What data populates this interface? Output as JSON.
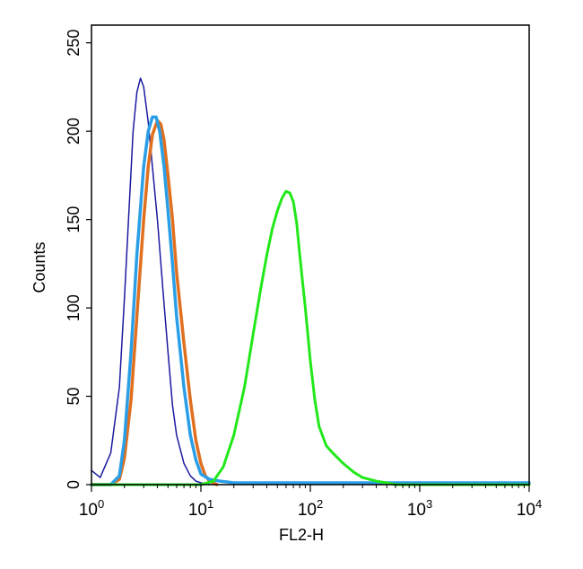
{
  "chart_data": {
    "type": "line",
    "title": "",
    "xlabel": "FL2-H",
    "ylabel": "Counts",
    "xscale": "log",
    "xlim": [
      1,
      10000
    ],
    "ylim": [
      0,
      260
    ],
    "x_ticks": [
      {
        "value": 1,
        "base": "10",
        "exp": "0"
      },
      {
        "value": 10,
        "base": "10",
        "exp": "1"
      },
      {
        "value": 100,
        "base": "10",
        "exp": "2"
      },
      {
        "value": 1000,
        "base": "10",
        "exp": "3"
      },
      {
        "value": 10000,
        "base": "10",
        "exp": "4"
      }
    ],
    "y_ticks": [
      "0",
      "50",
      "100",
      "150",
      "200",
      "250"
    ],
    "grid": false,
    "legend": "none",
    "series": [
      {
        "color": "#1a1aa0",
        "stroke_width": 1.5,
        "x": [
          1.0,
          1.2,
          1.5,
          1.8,
          2.0,
          2.2,
          2.4,
          2.6,
          2.8,
          3.0,
          3.3,
          3.6,
          4.0,
          4.5,
          5.0,
          5.5,
          6.0,
          7.0,
          8.0,
          9.0,
          10.0,
          12.0
        ],
        "y": [
          8,
          4,
          18,
          55,
          105,
          155,
          200,
          222,
          230,
          225,
          205,
          180,
          150,
          110,
          75,
          45,
          28,
          12,
          5,
          2,
          1,
          0
        ]
      },
      {
        "color": "#e07020",
        "stroke_width": 3.5,
        "x": [
          1.0,
          1.5,
          1.8,
          2.0,
          2.3,
          2.6,
          3.0,
          3.3,
          3.6,
          4.0,
          4.3,
          4.6,
          5.0,
          5.5,
          6.0,
          7.0,
          8.0,
          9.0,
          10.0,
          11.0,
          12.0,
          14.0
        ],
        "y": [
          0,
          0,
          3,
          15,
          48,
          95,
          150,
          180,
          198,
          206,
          204,
          195,
          175,
          150,
          120,
          80,
          48,
          25,
          12,
          5,
          2,
          0
        ]
      },
      {
        "color": "#2a9ee6",
        "stroke_width": 3.5,
        "x": [
          1.0,
          1.5,
          1.8,
          2.0,
          2.3,
          2.6,
          3.0,
          3.3,
          3.6,
          3.9,
          4.2,
          4.6,
          5.0,
          5.5,
          6.0,
          7.0,
          8.0,
          9.0,
          10.0,
          12.0,
          15.0,
          20.0,
          30.0,
          60.0,
          100.0,
          1000.0,
          10000.0
        ],
        "y": [
          0,
          0,
          5,
          25,
          75,
          130,
          180,
          200,
          208,
          208,
          200,
          180,
          155,
          125,
          95,
          55,
          28,
          14,
          6,
          3,
          2,
          1,
          1,
          1,
          1,
          1,
          1
        ]
      },
      {
        "color": "#22e81a",
        "stroke_width": 3,
        "x": [
          1.0,
          10.0,
          13.0,
          16.0,
          20.0,
          25.0,
          30.0,
          35.0,
          40.0,
          45.0,
          50.0,
          55.0,
          60.0,
          65.0,
          70.0,
          75.0,
          80.0,
          90.0,
          100.0,
          110.0,
          120.0,
          140.0,
          160.0,
          200.0,
          250.0,
          300.0,
          400.0,
          500.0,
          600.0,
          1000.0,
          10000.0
        ],
        "y": [
          0,
          0,
          2,
          10,
          28,
          55,
          85,
          110,
          130,
          145,
          155,
          162,
          166,
          165,
          160,
          148,
          130,
          100,
          70,
          48,
          33,
          22,
          18,
          12,
          7,
          4,
          2,
          1,
          0,
          0,
          0
        ]
      }
    ]
  }
}
